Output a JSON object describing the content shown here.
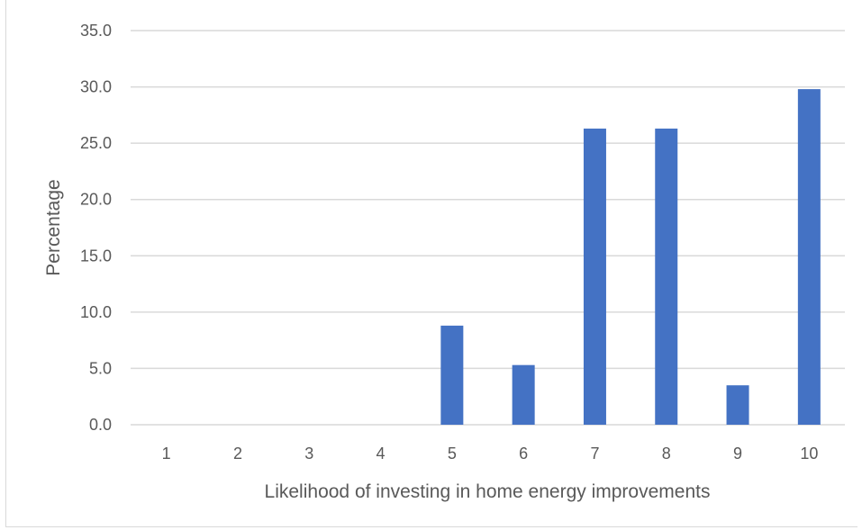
{
  "chart_data": {
    "type": "bar",
    "title": "",
    "xlabel": "Likelihood of investing in home energy improvements",
    "ylabel": "Percentage",
    "categories": [
      "1",
      "2",
      "3",
      "4",
      "5",
      "6",
      "7",
      "8",
      "9",
      "10"
    ],
    "values": [
      0,
      0,
      0,
      0,
      8.8,
      5.3,
      26.3,
      26.3,
      3.5,
      29.8
    ],
    "ylim": [
      0,
      35
    ],
    "yticks": [
      "0.0",
      "5.0",
      "10.0",
      "15.0",
      "20.0",
      "25.0",
      "30.0",
      "35.0"
    ],
    "grid": true,
    "legend": "none",
    "bar_color": "#4472c4",
    "grid_color": "#d9d9d9"
  }
}
